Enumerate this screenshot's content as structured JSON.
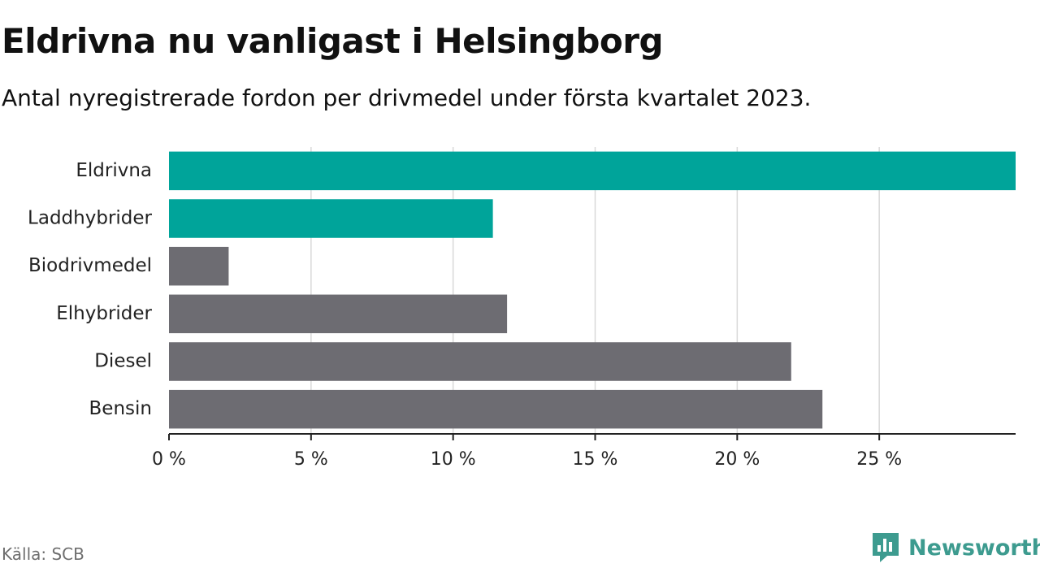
{
  "title": "Eldrivna nu vanligast i Helsingborg",
  "subtitle": "Antal nyregistrerade fordon per drivmedel under första kvartalet 2023.",
  "source": "Källa: SCB",
  "brand": {
    "name": "Newsworthy",
    "icon": "newsworthy-logo-icon"
  },
  "colors": {
    "highlight": "#00a49a",
    "default": "#6d6c72",
    "grid": "#d9d9d9",
    "axis": "#222222",
    "brand": "#3d9b8f"
  },
  "chart_data": {
    "type": "bar",
    "orientation": "horizontal",
    "categories": [
      "Eldrivna",
      "Laddhybrider",
      "Biodrivmedel",
      "Elhybrider",
      "Diesel",
      "Bensin"
    ],
    "values": [
      29.8,
      11.4,
      2.1,
      11.9,
      21.9,
      23.0
    ],
    "highlight": [
      true,
      true,
      false,
      false,
      false,
      false
    ],
    "unit": "%",
    "xlim": [
      0,
      29.8
    ],
    "xticks": [
      0,
      5,
      10,
      15,
      20,
      25
    ],
    "xtick_labels": [
      "0 %",
      "5 %",
      "10 %",
      "15 %",
      "20 %",
      "25 %"
    ],
    "grid": true,
    "legend": "none"
  }
}
